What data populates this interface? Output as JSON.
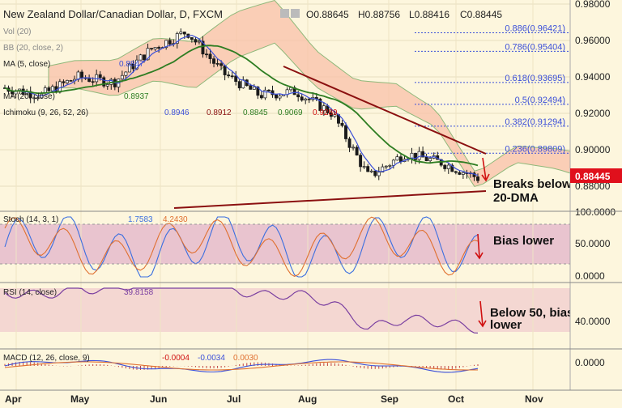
{
  "header": {
    "title": "New Zealand Dollar/Canadian Dollar, D, FXCM",
    "ohlc": {
      "open": "O0.88645",
      "high": "H0.88756",
      "low": "L0.88416",
      "close": "C0.88445"
    }
  },
  "indicators": {
    "vol": "Vol (20)",
    "bb": "BB (20, close, 2)",
    "ma5": {
      "label": "MA (5, close)",
      "value": "0.8847"
    },
    "ma20": {
      "label": "MA (20, close)",
      "value": "0.8937"
    },
    "ichimoku": {
      "label": "Ichimoku (9, 26, 52, 26)",
      "values": [
        "0.8946",
        "0.8912",
        "0.8845",
        "0.9069",
        "0.9289"
      ]
    }
  },
  "colors": {
    "background": "#fdf6dd",
    "candle_up": "#ffffff",
    "candle_down": "#1a1a1a",
    "ma5": "#3b4fd9",
    "ma20": "#2e7d22",
    "kumo_fill": "#f8c0a8",
    "trendline": "#8b1010",
    "fib": "#3b4fd9",
    "stoch_k": "#3b6fe0",
    "stoch_d": "#e07030",
    "rsi": "#7a3fa0",
    "price_tag": "#e0101c"
  },
  "price_axis": {
    "ticks": [
      "0.98000",
      "0.96000",
      "0.94000",
      "0.92000",
      "0.90000",
      "0.88000"
    ],
    "last_price": "0.88445"
  },
  "fib_levels": [
    {
      "label": "0.886(0.96421)",
      "price": 0.96421
    },
    {
      "label": "0.786(0.95404)",
      "price": 0.95404
    },
    {
      "label": "0.618(0.93695)",
      "price": 0.93695
    },
    {
      "label": "0.5(0.92494)",
      "price": 0.92494
    },
    {
      "label": "0.382(0.91294)",
      "price": 0.91294
    },
    {
      "label": "0.236(0.89809)",
      "price": 0.89809
    }
  ],
  "annotations": {
    "price": [
      "Breaks below",
      "20-DMA"
    ],
    "stoch": "Bias lower",
    "rsi": [
      "Below 50, bias",
      "lower"
    ]
  },
  "stoch": {
    "label": "Stoch (14, 3, 1)",
    "k": "1.7583",
    "d": "4.2430",
    "ticks": [
      "100.0000",
      "50.0000",
      "0.0000"
    ]
  },
  "rsi": {
    "label": "RSI (14, close)",
    "value": "39.8158",
    "ticks": [
      "40.0000"
    ]
  },
  "macd": {
    "label": "MACD (12, 26, close, 9)",
    "values": [
      "-0.0004",
      "-0.0034",
      "0.0030"
    ],
    "ticks": [
      "0.0000"
    ]
  },
  "months": [
    "Apr",
    "May",
    "Jun",
    "Jul",
    "Aug",
    "Sep",
    "Oct",
    "Nov"
  ],
  "chart_data": {
    "type": "candlestick",
    "title": "New Zealand Dollar/Canadian Dollar, D, FXCM",
    "ylim": [
      0.875,
      0.98
    ],
    "x": [
      "2017-04-01",
      "2017-04-15",
      "2017-05-01",
      "2017-05-15",
      "2017-06-01",
      "2017-06-15",
      "2017-07-01",
      "2017-07-15",
      "2017-08-01",
      "2017-08-15",
      "2017-09-01",
      "2017-09-15",
      "2017-10-01",
      "2017-10-10"
    ],
    "series": [
      {
        "name": "close",
        "values": [
          0.934,
          0.93,
          0.94,
          0.937,
          0.955,
          0.965,
          0.942,
          0.93,
          0.932,
          0.92,
          0.885,
          0.898,
          0.893,
          0.8845
        ]
      },
      {
        "name": "MA (5, close)",
        "values": [
          0.934,
          0.932,
          0.938,
          0.938,
          0.952,
          0.962,
          0.945,
          0.932,
          0.932,
          0.922,
          0.888,
          0.897,
          0.894,
          0.8847
        ]
      },
      {
        "name": "MA (20, close)",
        "values": [
          0.932,
          0.932,
          0.936,
          0.938,
          0.946,
          0.955,
          0.95,
          0.94,
          0.933,
          0.926,
          0.905,
          0.897,
          0.896,
          0.8937
        ]
      }
    ],
    "grid": true,
    "legend": "top-left"
  }
}
